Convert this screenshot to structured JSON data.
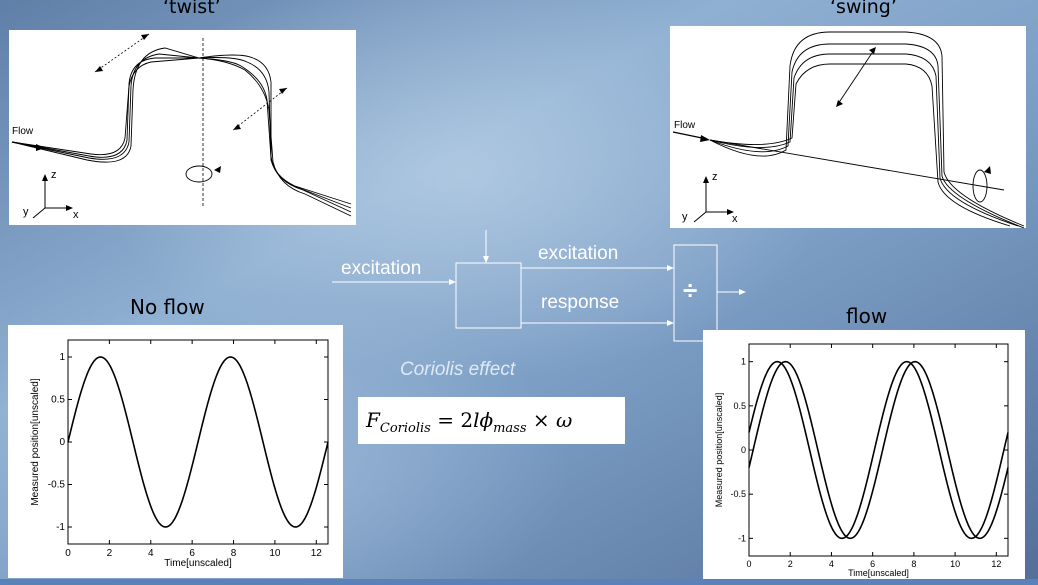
{
  "colors": {
    "background": "#6f8fb5",
    "accent_line": "#ffffff",
    "bottom_bar": "#5b82b8"
  },
  "panels": {
    "twist": {
      "title": "‘twist’",
      "flow_label": "Flow",
      "axis_labels": {
        "z": "z",
        "y": "y",
        "x": "x"
      }
    },
    "swing": {
      "title": "‘swing’",
      "flow_label": "Flow",
      "axis_labels": {
        "z": "z",
        "y": "y",
        "x": "x"
      }
    }
  },
  "block_diagram": {
    "input_label": "excitation",
    "upper_label": "excitation",
    "lower_label": "response",
    "divide_symbol": "÷",
    "effect_label": "Coriolis effect",
    "formula": {
      "lhs_symbol": "F",
      "lhs_subscript": "Coriolis",
      "rhs_prefix": "= 2",
      "l_symbol": "l",
      "phi_symbol": "ϕ",
      "phi_subscript": "mass",
      "times_symbol": "×",
      "omega_symbol": "ω"
    }
  },
  "chart_data": [
    {
      "type": "line",
      "title": "No flow",
      "xlabel": "Time[unscaled]",
      "ylabel": "Measured position[unscaled]",
      "xlim": [
        0,
        12.566
      ],
      "ylim": [
        -1.2,
        1.2
      ],
      "xticks": [
        0,
        2,
        4,
        6,
        8,
        10,
        12
      ],
      "yticks": [
        -1,
        -0.5,
        0,
        0.5,
        1
      ],
      "grid": false,
      "series": [
        {
          "function": "sin(t)",
          "x_range": [
            0,
            12.566
          ],
          "phase": 0
        }
      ]
    },
    {
      "type": "line",
      "title": "flow",
      "xlabel": "Time[unscaled]",
      "ylabel": "Measured position[unscaled]",
      "xlim": [
        0,
        12.566
      ],
      "ylim": [
        -1.2,
        1.2
      ],
      "xticks": [
        0,
        2,
        4,
        6,
        8,
        10,
        12
      ],
      "yticks": [
        -1,
        -0.5,
        0,
        0.5,
        1
      ],
      "grid": false,
      "series": [
        {
          "function": "sin(t + phase)",
          "x_range": [
            0,
            12.566
          ],
          "phase": 0.2
        },
        {
          "function": "sin(t + phase)",
          "x_range": [
            0,
            12.566
          ],
          "phase": -0.2
        }
      ]
    }
  ]
}
